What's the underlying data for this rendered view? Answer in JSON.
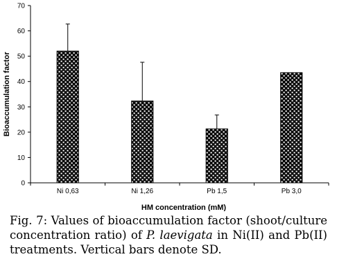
{
  "chart_data": {
    "type": "bar",
    "categories": [
      "Ni 0,63",
      "Ni 1,26",
      "Pb 1,5",
      "Pb 3,0"
    ],
    "series": [
      {
        "values": [
          52,
          32.3,
          21.3,
          43.5
        ],
        "error": [
          10.7,
          15.3,
          5.5,
          0
        ]
      }
    ],
    "ylabel": "Bioaccumulation factor",
    "xlabel": "HM concentration (mM)",
    "ylim": [
      0,
      70
    ],
    "yticks": [
      0,
      10,
      20,
      30,
      40,
      50,
      60,
      70
    ],
    "grid": false,
    "legend": "none",
    "bar_pattern": "brick",
    "colors": {
      "bar_fill": "#000000",
      "bar_pattern": "#ffffff",
      "axis": "#000000"
    }
  },
  "caption": {
    "label": "Fig.",
    "number": "7:",
    "text_1": " Values of bioaccumulation factor (shoot/culture concentration ratio) of ",
    "species": "P. laevigata",
    "text_2": " in Ni(II) and Pb(II) treatments. Vertical bars denote SD."
  }
}
